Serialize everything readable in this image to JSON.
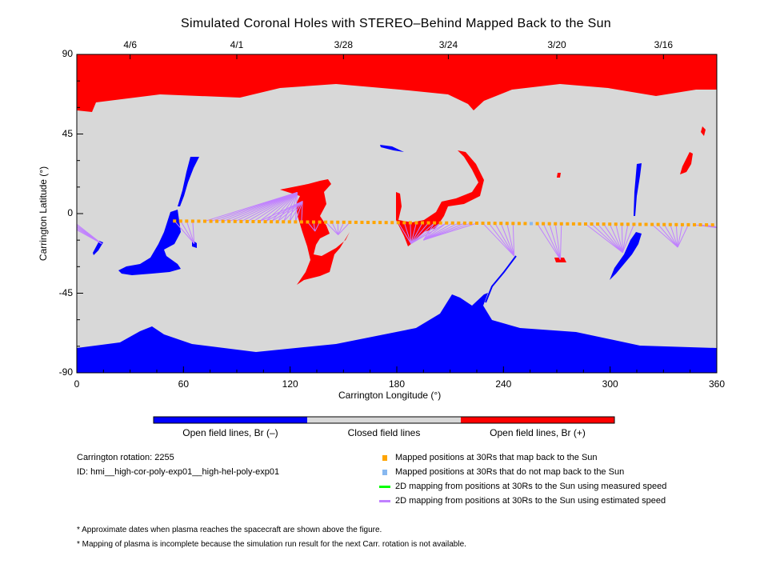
{
  "chart_data": {
    "type": "map",
    "title": "Simulated Coronal Holes with STEREO–Behind Mapped Back to the Sun",
    "xlabel": "Carrington Longitude (°)",
    "ylabel": "Carrington Latitude (°)",
    "xlim": [
      0,
      360
    ],
    "ylim": [
      -90,
      90
    ],
    "x_ticks": [
      "0",
      "60",
      "120",
      "180",
      "240",
      "300",
      "360"
    ],
    "x_tick_values": [
      0,
      60,
      120,
      180,
      240,
      300,
      360
    ],
    "y_ticks": [
      "90",
      "45",
      "0",
      "-45",
      "-90"
    ],
    "y_tick_values": [
      90,
      45,
      0,
      -45,
      -90
    ],
    "top_date_ticks": [
      {
        "label": "4/6",
        "lon": 30
      },
      {
        "label": "4/1",
        "lon": 90
      },
      {
        "label": "3/28",
        "lon": 150
      },
      {
        "label": "3/24",
        "lon": 209
      },
      {
        "label": "3/20",
        "lon": 270
      },
      {
        "label": "3/16",
        "lon": 330
      }
    ],
    "mapped_points": {
      "lon_start": 55,
      "lon_end": 360,
      "step": 3.4,
      "lat_start": -4.2,
      "lat_end": -6.4,
      "not_mapped_lons": [
        256
      ]
    },
    "mapping_groups": [
      {
        "from": [
          0,
          3
        ],
        "to": [
          14,
          -17
        ]
      },
      {
        "from": [
          55,
          66
        ],
        "to": [
          66,
          -17
        ]
      },
      {
        "from": [
          69,
          126
        ],
        "to": [
          124,
          12
        ]
      },
      {
        "from": [
          100,
          128
        ],
        "to": [
          127,
          7
        ]
      },
      {
        "from": [
          128,
          140
        ],
        "to": [
          134,
          -10
        ]
      },
      {
        "from": [
          138,
          155
        ],
        "to": [
          147,
          -12
        ]
      },
      {
        "from": [
          178,
          210
        ],
        "to": [
          188,
          -17
        ]
      },
      {
        "from": [
          200,
          228
        ],
        "to": [
          195,
          -15
        ]
      },
      {
        "from": [
          228,
          246
        ],
        "to": [
          246,
          -24
        ]
      },
      {
        "from": [
          258,
          274
        ],
        "to": [
          272,
          -26
        ]
      },
      {
        "from": [
          286,
          315
        ],
        "to": [
          307,
          -22
        ]
      },
      {
        "from": [
          323,
          345
        ],
        "to": [
          338,
          -19
        ]
      },
      {
        "from": [
          345,
          360
        ],
        "to": [
          360,
          -8
        ]
      }
    ],
    "colorbar": [
      {
        "label": "Open field lines, Br (–)",
        "color": "#0000ff"
      },
      {
        "label": "Closed field lines",
        "color": "#d8d8d8"
      },
      {
        "label": "Open field lines, Br (+)",
        "color": "#ff0000"
      }
    ],
    "legend": [
      {
        "label": "Mapped positions at 30Rs that map back to the Sun",
        "color": "#ffa500",
        "kind": "square"
      },
      {
        "label": "Mapped positions at 30Rs that do not map back to the Sun",
        "color": "#87b8f0",
        "kind": "square"
      },
      {
        "label": "2D mapping from positions at 30Rs to the Sun using measured speed",
        "color": "#00ff00",
        "kind": "line"
      },
      {
        "label": "2D mapping from positions at 30Rs to the Sun using estimated speed",
        "color": "#c080ff",
        "kind": "line"
      }
    ]
  },
  "info": {
    "rotation": "Carrington rotation: 2255",
    "id": "ID: hmi__high-cor-poly-exp01__high-hel-poly-exp01"
  },
  "notes": [
    "* Approximate dates when plasma reaches the spacecraft are shown above the figure.",
    "* Mapping of plasma is incomplete because the simulation run result for the next Carr. rotation is not available."
  ]
}
